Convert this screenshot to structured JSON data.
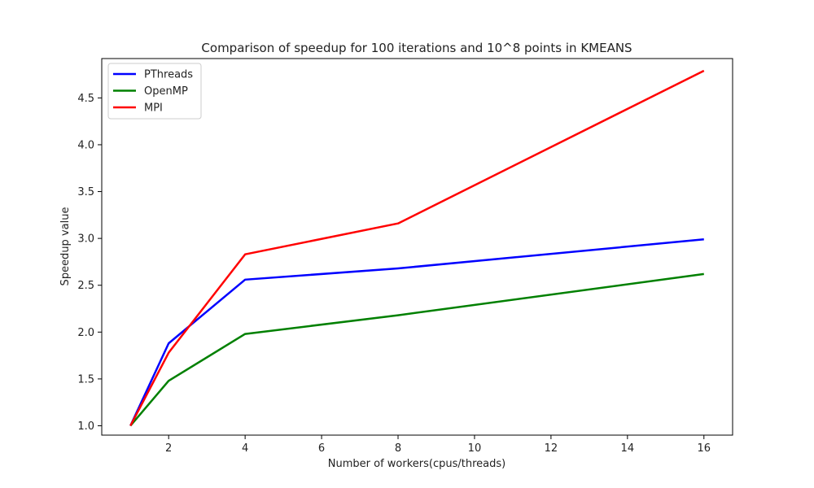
{
  "chart_data": {
    "type": "line",
    "title": "Comparison of speedup for 100 iterations and 10^8 points in KMEANS",
    "xlabel": "Number of workers(cpus/threads)",
    "ylabel": "Speedup value",
    "xlim": [
      0.25,
      16.75
    ],
    "ylim": [
      0.9,
      4.92
    ],
    "xticks": [
      2,
      4,
      6,
      8,
      10,
      12,
      14,
      16
    ],
    "yticks": [
      1.0,
      1.5,
      2.0,
      2.5,
      3.0,
      3.5,
      4.0,
      4.5
    ],
    "x": [
      1,
      2,
      4,
      8,
      16
    ],
    "series": [
      {
        "name": "PThreads",
        "color": "#0000ff",
        "values": [
          1.0,
          1.88,
          2.56,
          2.68,
          2.99
        ]
      },
      {
        "name": "OpenMP",
        "color": "#008000",
        "values": [
          1.0,
          1.48,
          1.98,
          2.18,
          2.62
        ]
      },
      {
        "name": "MPI",
        "color": "#ff0000",
        "values": [
          1.0,
          1.78,
          2.83,
          3.16,
          4.79
        ]
      }
    ],
    "grid": false,
    "legend": "upper-left"
  }
}
